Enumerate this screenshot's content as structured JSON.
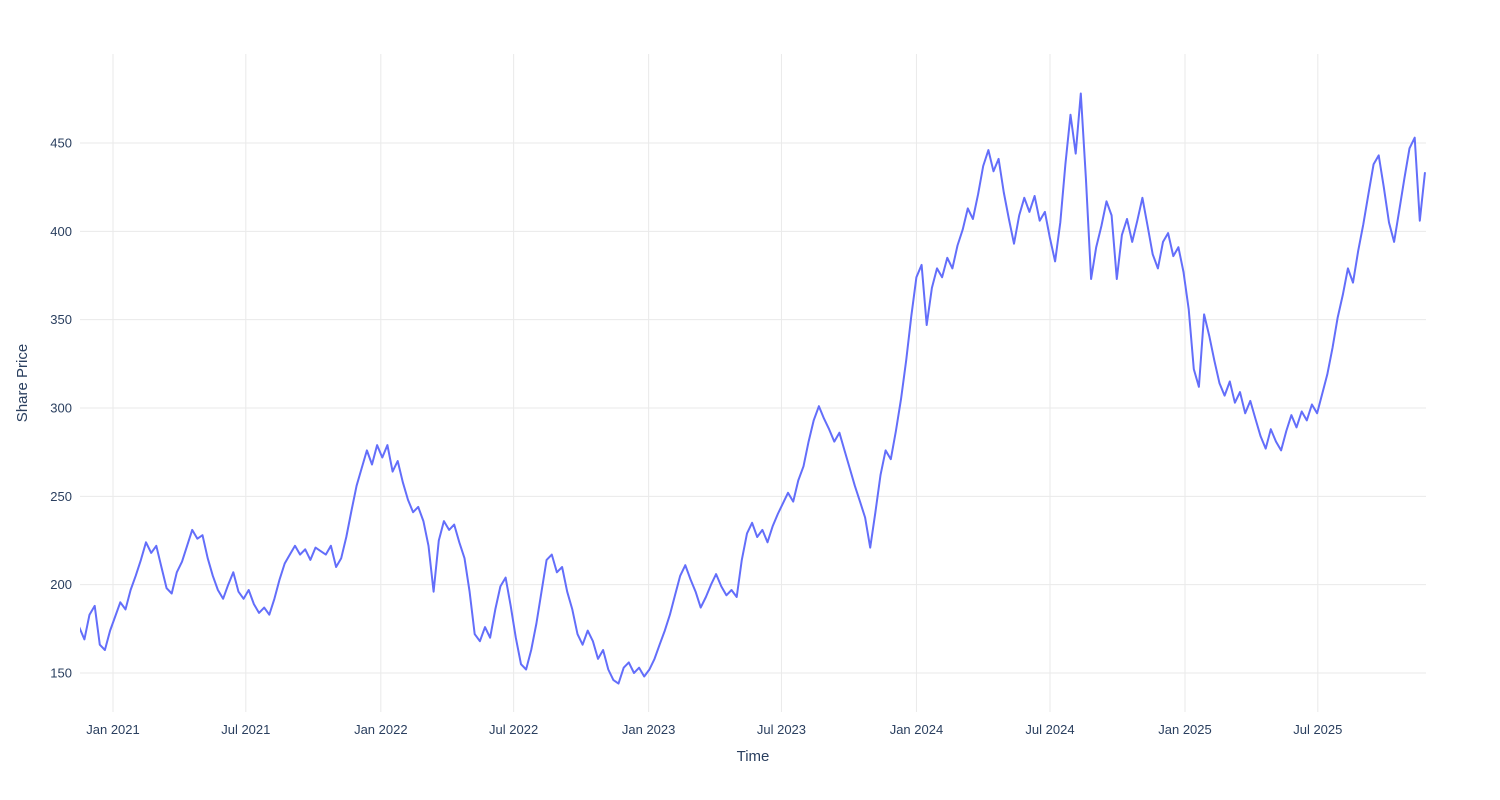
{
  "chart_data": {
    "type": "line",
    "title": "",
    "xlabel": "Time",
    "ylabel": "Share Price",
    "grid": true,
    "legend": "none",
    "colors": {
      "line": "#636efa",
      "grid": "#eaeaea",
      "tick": "#2a3f5f",
      "axis_title": "#2a3f5f",
      "background": "#ffffff"
    },
    "y_ticks": [
      150,
      200,
      250,
      300,
      350,
      400,
      450
    ],
    "y_range_approx": [
      128,
      500
    ],
    "x_ticks": [
      {
        "label": "Jan 2021",
        "date": "2021-01-01"
      },
      {
        "label": "Jul 2021",
        "date": "2021-07-01"
      },
      {
        "label": "Jan 2022",
        "date": "2022-01-01"
      },
      {
        "label": "Jul 2022",
        "date": "2022-07-01"
      },
      {
        "label": "Jan 2023",
        "date": "2023-01-01"
      },
      {
        "label": "Jul 2023",
        "date": "2023-07-01"
      },
      {
        "label": "Jan 2024",
        "date": "2024-01-01"
      },
      {
        "label": "Jul 2024",
        "date": "2024-07-01"
      },
      {
        "label": "Jan 2025",
        "date": "2025-01-01"
      },
      {
        "label": "Jul 2025",
        "date": "2025-07-01"
      }
    ],
    "series": [
      {
        "name": "Share Price",
        "start_date": "2020-11-16",
        "step_days": 7,
        "values": [
          176,
          169,
          183,
          188,
          166,
          163,
          174,
          182,
          190,
          186,
          197,
          205,
          214,
          224,
          218,
          222,
          210,
          198,
          195,
          207,
          213,
          222,
          231,
          226,
          228,
          215,
          205,
          197,
          192,
          200,
          207,
          196,
          192,
          197,
          189,
          184,
          187,
          183,
          192,
          203,
          212,
          217,
          222,
          217,
          220,
          214,
          221,
          219,
          217,
          222,
          210,
          215,
          227,
          242,
          256,
          266,
          276,
          268,
          279,
          272,
          279,
          264,
          270,
          258,
          248,
          241,
          244,
          236,
          222,
          196,
          225,
          236,
          231,
          234,
          224,
          215,
          196,
          172,
          168,
          176,
          170,
          186,
          199,
          204,
          188,
          170,
          155,
          152,
          163,
          178,
          196,
          214,
          217,
          207,
          210,
          196,
          186,
          172,
          166,
          174,
          168,
          158,
          163,
          152,
          146,
          144,
          153,
          156,
          150,
          153,
          148,
          152,
          158,
          166,
          174,
          183,
          194,
          205,
          211,
          203,
          196,
          187,
          193,
          200,
          206,
          199,
          194,
          197,
          193,
          214,
          229,
          235,
          227,
          231,
          224,
          233,
          240,
          246,
          252,
          247,
          259,
          267,
          281,
          293,
          301,
          294,
          288,
          281,
          286,
          276,
          266,
          256,
          247,
          238,
          221,
          241,
          262,
          276,
          271,
          287,
          305,
          327,
          352,
          374,
          381,
          347,
          368,
          379,
          374,
          385,
          379,
          392,
          401,
          413,
          407,
          421,
          437,
          446,
          434,
          441,
          422,
          407,
          393,
          409,
          419,
          411,
          420,
          406,
          411,
          396,
          383,
          405,
          438,
          466,
          444,
          478,
          430,
          373,
          391,
          403,
          417,
          409,
          373,
          398,
          407,
          394,
          406,
          419,
          403,
          387,
          379,
          394,
          399,
          386,
          391,
          377,
          356,
          322,
          312,
          353,
          341,
          327,
          314,
          307,
          315,
          303,
          309,
          297,
          304,
          294,
          284,
          277,
          288,
          281,
          276,
          287,
          296,
          289,
          298,
          293,
          302,
          297,
          308,
          319,
          334,
          351,
          364,
          379,
          371,
          389,
          404,
          421,
          438,
          443,
          425,
          405,
          394,
          412,
          430,
          447,
          453,
          406,
          433
        ]
      }
    ]
  }
}
